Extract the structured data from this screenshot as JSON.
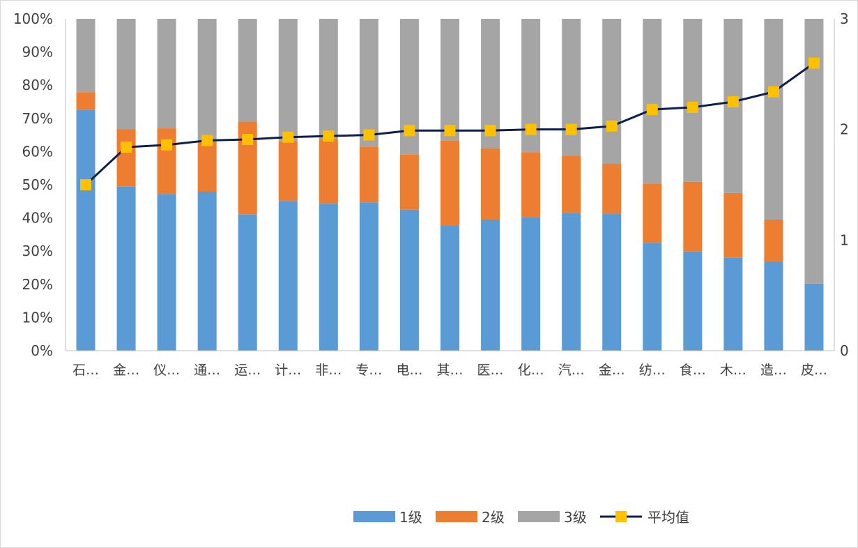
{
  "chart_data": {
    "type": "bar",
    "stacked": true,
    "percent_stacked": true,
    "categories": [
      "石…",
      "金…",
      "仪…",
      "通…",
      "运…",
      "计…",
      "非…",
      "专…",
      "电…",
      "其…",
      "医…",
      "化…",
      "汽…",
      "金…",
      "纺…",
      "食…",
      "木…",
      "造…",
      "皮…"
    ],
    "series": [
      {
        "name": "1级",
        "type": "bar",
        "axis": "left",
        "color": "#5b9bd5",
        "values": [
          72.5,
          49.4,
          47.2,
          47.9,
          41.0,
          45.1,
          44.3,
          44.7,
          42.5,
          37.7,
          39.5,
          40.3,
          41.4,
          41.3,
          32.5,
          29.9,
          28.0,
          26.9,
          20.2
        ]
      },
      {
        "name": "2级",
        "type": "bar",
        "axis": "left",
        "color": "#ed7d31",
        "values": [
          5.4,
          17.3,
          19.8,
          15.0,
          28.0,
          18.0,
          19.5,
          16.8,
          16.6,
          25.7,
          21.5,
          19.5,
          17.4,
          15.0,
          17.8,
          21.0,
          19.5,
          12.6,
          0.0
        ]
      },
      {
        "name": "3级",
        "type": "bar",
        "axis": "left",
        "color": "#a5a5a5",
        "values": [
          22.1,
          33.3,
          33.0,
          37.1,
          31.0,
          36.9,
          36.2,
          38.5,
          40.9,
          36.6,
          39.0,
          40.2,
          41.2,
          43.7,
          49.7,
          49.1,
          52.5,
          60.5,
          79.8
        ]
      },
      {
        "name": "平均值",
        "type": "line",
        "axis": "right",
        "color": "#0d1f4c",
        "marker_color": "#ffc000",
        "values": [
          1.5,
          1.84,
          1.86,
          1.9,
          1.91,
          1.93,
          1.94,
          1.95,
          1.99,
          1.99,
          1.99,
          2.0,
          2.0,
          2.03,
          2.18,
          2.2,
          2.25,
          2.34,
          2.6
        ]
      }
    ],
    "y_left": {
      "ylim": [
        0,
        100
      ],
      "ticks": [
        "0%",
        "10%",
        "20%",
        "30%",
        "40%",
        "50%",
        "60%",
        "70%",
        "80%",
        "90%",
        "100%"
      ]
    },
    "y_right": {
      "ylim": [
        0,
        3
      ],
      "ticks": [
        "0",
        "1",
        "2",
        "3"
      ]
    },
    "legend": {
      "position": "bottom",
      "entries": [
        "1级",
        "2级",
        "3级",
        "平均值"
      ]
    },
    "grid": false
  }
}
